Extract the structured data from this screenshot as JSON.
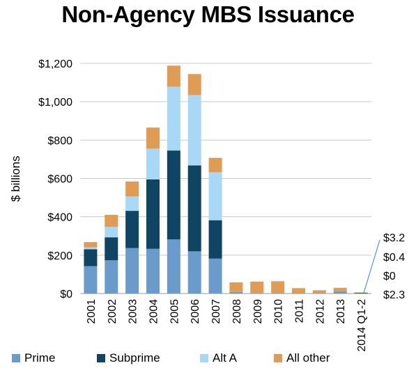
{
  "chart_data": {
    "type": "bar",
    "stacked": true,
    "title": "Non-Agency MBS Issuance",
    "ylabel": "$ billions",
    "xlabel": "",
    "ylim": [
      0,
      1200
    ],
    "y_ticks": [
      0,
      200,
      400,
      600,
      800,
      1000,
      1200
    ],
    "y_tick_labels": [
      "$0",
      "$200",
      "$400",
      "$600",
      "$800",
      "$1,000",
      "$1,200"
    ],
    "grid": true,
    "legend_position": "bottom",
    "categories": [
      "2001",
      "2002",
      "2003",
      "2004",
      "2005",
      "2006",
      "2007",
      "2008",
      "2009",
      "2010",
      "2011",
      "2012",
      "2013",
      "2014 Q1-2"
    ],
    "series": [
      {
        "name": "Prime",
        "color": "#6b9bcb",
        "values": [
          143,
          173,
          237,
          233,
          282,
          220,
          182,
          8,
          2,
          2,
          1,
          3,
          12,
          3.2
        ]
      },
      {
        "name": "Subprime",
        "color": "#0f4462",
        "values": [
          88,
          120,
          194,
          362,
          463,
          448,
          200,
          0,
          0,
          0,
          0,
          0,
          0,
          0.4
        ]
      },
      {
        "name": "Alt A",
        "color": "#a9d8f7",
        "values": [
          10,
          55,
          75,
          160,
          333,
          366,
          250,
          0,
          0,
          0,
          0,
          0,
          0,
          0
        ]
      },
      {
        "name": "All other",
        "color": "#e19c54",
        "values": [
          27,
          62,
          78,
          110,
          110,
          110,
          75,
          50,
          60,
          62,
          27,
          14,
          18,
          2.3
        ]
      }
    ],
    "annotations": [
      "$3.2",
      "$0.4",
      "$0",
      "$2.3"
    ]
  }
}
